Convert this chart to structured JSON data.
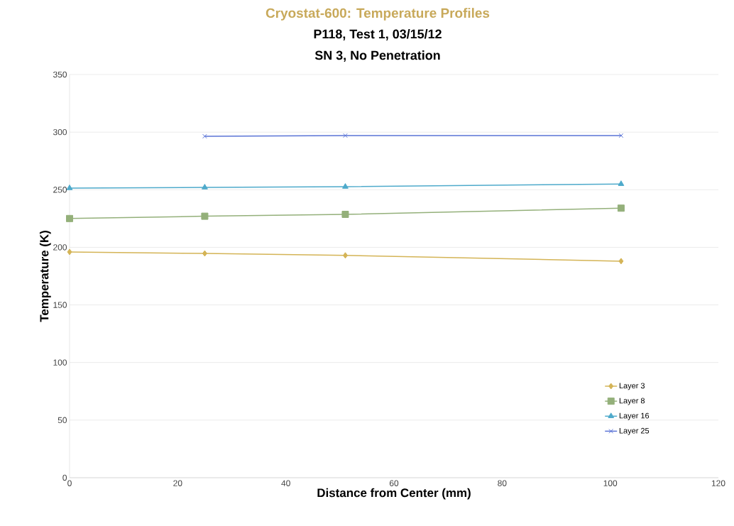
{
  "chart_data": {
    "type": "line",
    "title": "Cryostat-600:  Temperature Profiles",
    "subtitle": [
      "P118, Test 1, 03/15/12",
      "SN 3, No Penetration"
    ],
    "xlabel": "Distance from Center (mm)",
    "ylabel": "Temperature (K)",
    "xlim": [
      0,
      120
    ],
    "xticks": [
      0,
      20,
      40,
      60,
      80,
      100,
      120
    ],
    "ylim": [
      0,
      350
    ],
    "yticks": [
      0,
      50,
      100,
      150,
      200,
      250,
      300,
      350
    ],
    "grid": "y",
    "legend": "bottom right",
    "line_style": "solid",
    "series": [
      {
        "name": "Layer 3",
        "color": "#d4b456",
        "marker": "diamond",
        "x": [
          0,
          25,
          51,
          102
        ],
        "values": [
          196,
          194.7,
          193,
          188
        ]
      },
      {
        "name": "Layer 8",
        "color": "#94b07a",
        "marker": "square",
        "x": [
          0,
          25,
          51,
          102
        ],
        "values": [
          225,
          227,
          228.6,
          234
        ]
      },
      {
        "name": "Layer 16",
        "color": "#4eaacb",
        "marker": "triangle",
        "x": [
          0,
          25,
          51,
          102
        ],
        "values": [
          251.4,
          252,
          252.6,
          255
        ]
      },
      {
        "name": "Layer 25",
        "color": "#5b74d6",
        "marker": "cross",
        "x": [
          25,
          51,
          102
        ],
        "values": [
          296.4,
          297,
          297
        ]
      }
    ]
  }
}
